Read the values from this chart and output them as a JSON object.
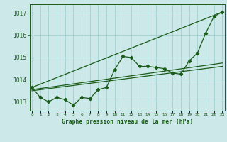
{
  "x": [
    0,
    1,
    2,
    3,
    4,
    5,
    6,
    7,
    8,
    9,
    10,
    11,
    12,
    13,
    14,
    15,
    16,
    17,
    18,
    19,
    20,
    21,
    22,
    23
  ],
  "y_main": [
    1013.65,
    1013.2,
    1013.0,
    1013.2,
    1013.1,
    1012.85,
    1013.2,
    1013.15,
    1013.55,
    1013.65,
    1014.45,
    1015.05,
    1015.0,
    1014.6,
    1014.6,
    1014.55,
    1014.5,
    1014.3,
    1014.25,
    1014.85,
    1015.2,
    1016.1,
    1016.85,
    1017.05
  ],
  "trend1_x": [
    0,
    23
  ],
  "trend1_y": [
    1013.65,
    1017.05
  ],
  "trend2_x": [
    0,
    23
  ],
  "trend2_y": [
    1013.5,
    1014.6
  ],
  "trend3_x": [
    0,
    23
  ],
  "trend3_y": [
    1013.55,
    1014.75
  ],
  "background_color": "#cce8e8",
  "grid_color": "#99cccc",
  "line_color": "#1a5c1a",
  "title": "Graphe pression niveau de la mer (hPa)",
  "xlabel_vals": [
    "0",
    "1",
    "2",
    "3",
    "4",
    "5",
    "6",
    "7",
    "8",
    "9",
    "10",
    "11",
    "12",
    "13",
    "14",
    "15",
    "16",
    "17",
    "18",
    "19",
    "20",
    "21",
    "22",
    "23"
  ],
  "yticks": [
    1013,
    1014,
    1015,
    1016,
    1017
  ],
  "ylim": [
    1012.6,
    1017.4
  ],
  "xlim": [
    -0.3,
    23.3
  ]
}
